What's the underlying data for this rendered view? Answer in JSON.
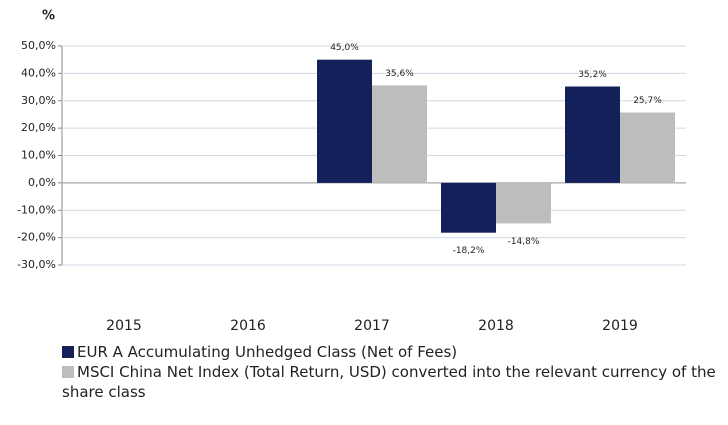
{
  "chart_data": {
    "type": "bar",
    "y_label": "%",
    "categories": [
      "2015",
      "2016",
      "2017",
      "2018",
      "2019"
    ],
    "series": [
      {
        "name": "EUR A Accumulating Unhedged Class (Net of Fees)",
        "color": "#13205a",
        "values": [
          null,
          null,
          45.0,
          -18.2,
          35.2
        ],
        "value_labels": [
          null,
          null,
          "45,0%",
          "-18,2%",
          "35,2%"
        ]
      },
      {
        "name": "MSCI China Net Index (Total Return, USD) converted into the relevant currency of the share class",
        "color": "#bdbdbd",
        "values": [
          null,
          null,
          35.6,
          -14.8,
          25.7
        ],
        "value_labels": [
          null,
          null,
          "35,6%",
          "-14,8%",
          "25,7%"
        ]
      }
    ],
    "ylim": [
      -30,
      50
    ],
    "yticks": [
      {
        "value": -30,
        "label": "-30,0%"
      },
      {
        "value": -20,
        "label": "-20,0%"
      },
      {
        "value": -10,
        "label": "-10,0%"
      },
      {
        "value": 0,
        "label": "0,0%"
      },
      {
        "value": 10,
        "label": "10,0%"
      },
      {
        "value": 20,
        "label": "20,0%"
      },
      {
        "value": 30,
        "label": "30,0%"
      },
      {
        "value": 40,
        "label": "40,0%"
      },
      {
        "value": 50,
        "label": "50,0%"
      }
    ],
    "grid": true
  }
}
